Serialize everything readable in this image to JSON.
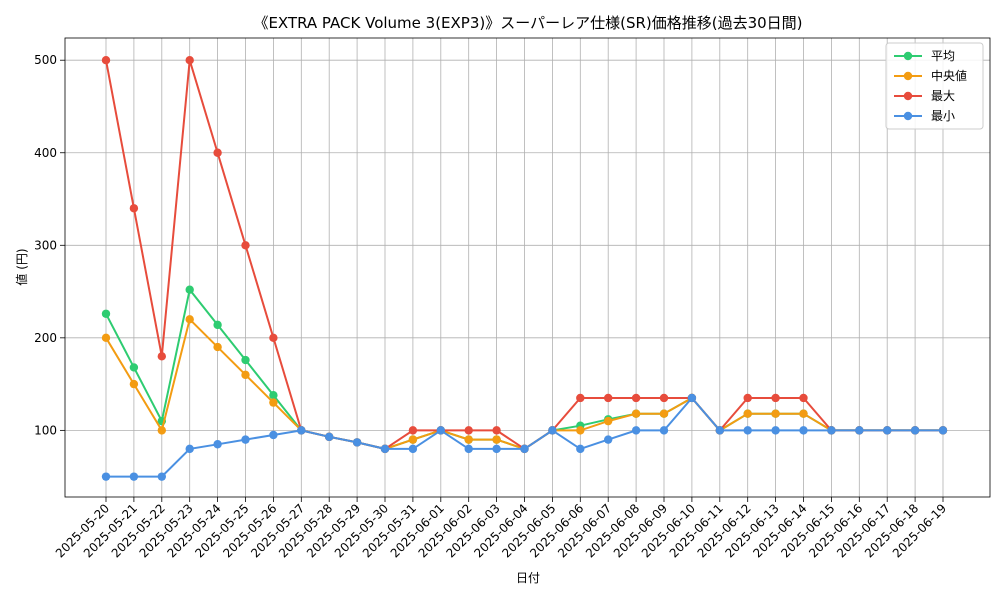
{
  "chart_data": {
    "type": "line",
    "title": "《EXTRA PACK Volume 3(EXP3)》スーパーレア仕様(SR)価格推移(過去30日間)",
    "xlabel": "日付",
    "ylabel": "値 (円)",
    "ylim": [
      28,
      524
    ],
    "yticks": [
      100,
      200,
      300,
      400,
      500
    ],
    "grid": true,
    "legend_position": "top-right",
    "categories": [
      "2025-05-20",
      "2025-05-21",
      "2025-05-22",
      "2025-05-23",
      "2025-05-24",
      "2025-05-25",
      "2025-05-26",
      "2025-05-27",
      "2025-05-28",
      "2025-05-29",
      "2025-05-30",
      "2025-05-31",
      "2025-06-01",
      "2025-06-02",
      "2025-06-03",
      "2025-06-04",
      "2025-06-05",
      "2025-06-06",
      "2025-06-07",
      "2025-06-08",
      "2025-06-09",
      "2025-06-10",
      "2025-06-11",
      "2025-06-12",
      "2025-06-13",
      "2025-06-14",
      "2025-06-15",
      "2025-06-16",
      "2025-06-17",
      "2025-06-18",
      "2025-06-19"
    ],
    "series": [
      {
        "name": "平均",
        "color": "#2ecc71",
        "values": [
          226,
          168,
          110,
          252,
          214,
          176,
          138,
          100,
          93,
          87,
          80,
          90,
          100,
          90,
          90,
          80,
          100,
          105,
          112,
          118,
          118,
          135,
          100,
          118,
          118,
          118,
          100,
          100,
          100,
          100,
          100
        ]
      },
      {
        "name": "中央値",
        "color": "#f39c12",
        "values": [
          200,
          150,
          100,
          220,
          190,
          160,
          130,
          100,
          93,
          87,
          80,
          90,
          100,
          90,
          90,
          80,
          100,
          100,
          110,
          118,
          118,
          135,
          100,
          118,
          118,
          118,
          100,
          100,
          100,
          100,
          100
        ]
      },
      {
        "name": "最大",
        "color": "#e74c3c",
        "values": [
          500,
          340,
          180,
          500,
          400,
          300,
          200,
          100,
          93,
          87,
          80,
          100,
          100,
          100,
          100,
          80,
          100,
          135,
          135,
          135,
          135,
          135,
          100,
          135,
          135,
          135,
          100,
          100,
          100,
          100,
          100
        ]
      },
      {
        "name": "最小",
        "color": "#4a90e2",
        "values": [
          50,
          50,
          50,
          80,
          85,
          90,
          95,
          100,
          93,
          87,
          80,
          80,
          100,
          80,
          80,
          80,
          100,
          80,
          90,
          100,
          100,
          135,
          100,
          100,
          100,
          100,
          100,
          100,
          100,
          100,
          100
        ]
      }
    ]
  }
}
